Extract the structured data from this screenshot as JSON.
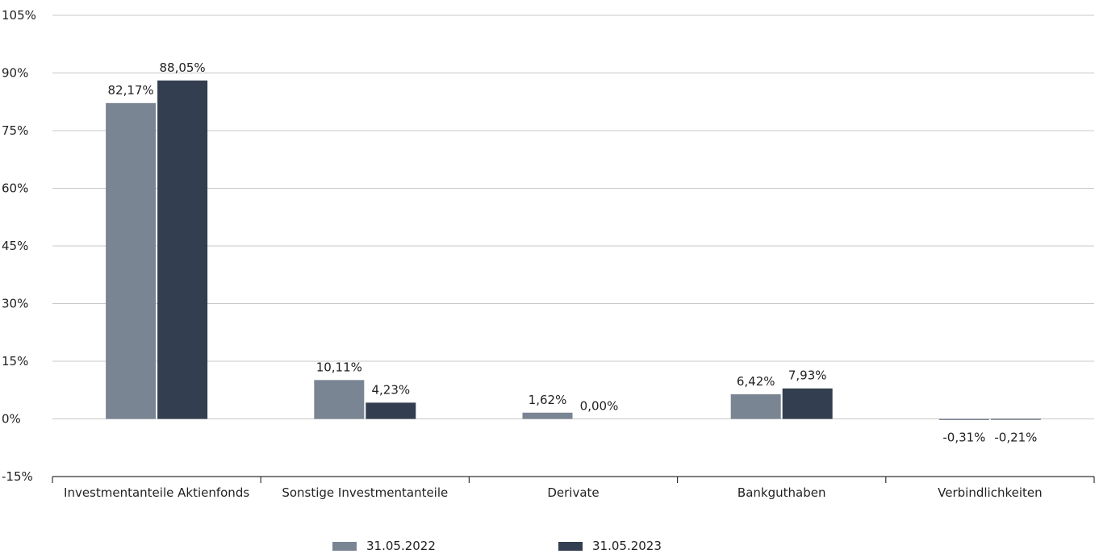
{
  "colors": {
    "series_2022": "#7a8593",
    "series_2023": "#333f50",
    "grid": "#c8c8c8",
    "axis": "#333333"
  },
  "chart_data": {
    "type": "bar",
    "categories": [
      "Investmentanteile Aktienfonds",
      "Sonstige Investmentanteile",
      "Derivate",
      "Bankguthaben",
      "Verbindlichkeiten"
    ],
    "series": [
      {
        "name": "31.05.2022",
        "values": [
          82.17,
          10.11,
          1.62,
          6.42,
          -0.31
        ],
        "labels": [
          "82,17%",
          "10,11%",
          "1,62%",
          "6,42%",
          "-0,31%"
        ]
      },
      {
        "name": "31.05.2023",
        "values": [
          88.05,
          4.23,
          0.0,
          7.93,
          -0.21
        ],
        "labels": [
          "88,05%",
          "4,23%",
          "0,00%",
          "7,93%",
          "-0,21%"
        ]
      }
    ],
    "ylim": [
      -15,
      105
    ],
    "yticks": [
      -15,
      0,
      15,
      30,
      45,
      60,
      75,
      90,
      105
    ],
    "ytick_labels": [
      "-15%",
      "0%",
      "15%",
      "30%",
      "45%",
      "60%",
      "75%",
      "90%",
      "105%"
    ],
    "grid": true,
    "legend_position": "bottom"
  }
}
